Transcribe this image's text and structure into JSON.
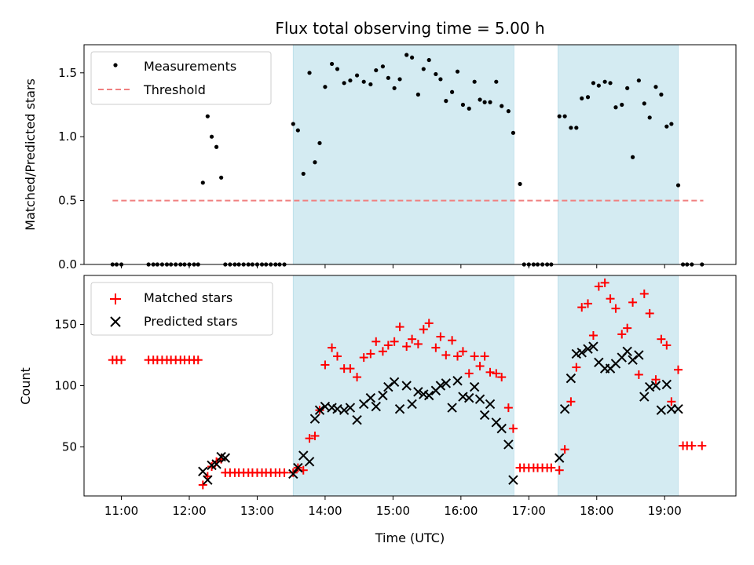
{
  "chart_data": {
    "type": "scatter",
    "title": "Flux total observing time = 5.00 h",
    "xlabel": "Time (UTC)",
    "x_ticks": [
      "11:00",
      "12:00",
      "13:00",
      "14:00",
      "15:00",
      "16:00",
      "17:00",
      "18:00",
      "19:00"
    ],
    "x_tick_hours": [
      11,
      12,
      13,
      14,
      15,
      16,
      17,
      18,
      19
    ],
    "xlim_hours": [
      10.45,
      20.05
    ],
    "shaded_intervals_hours": [
      [
        13.53,
        16.78
      ],
      [
        17.43,
        19.2
      ]
    ],
    "colors": {
      "shade": "#d4ebf2",
      "matched": "#ff0000",
      "predicted": "#000000",
      "threshold": "#f08080",
      "measurement": "#000000"
    },
    "top_panel": {
      "ylabel": "Matched/Predicted stars",
      "ylim": [
        0,
        1.72
      ],
      "y_ticks": [
        0.0,
        0.5,
        1.0,
        1.5
      ],
      "y_tick_labels": [
        "0.0",
        "0.5",
        "1.0",
        "1.5"
      ],
      "legend": {
        "position": "upper-left",
        "entries": [
          "Measurements",
          "Threshold"
        ]
      },
      "threshold": {
        "x_start": 10.87,
        "x_end": 19.57,
        "y": 0.5
      },
      "measurements": {
        "x": [
          10.87,
          10.93,
          11.0,
          11.4,
          11.47,
          11.53,
          11.6,
          11.67,
          11.73,
          11.8,
          11.87,
          11.93,
          12.0,
          12.07,
          12.13,
          12.2,
          12.27,
          12.33,
          12.4,
          12.47,
          12.53,
          12.6,
          12.67,
          12.73,
          12.8,
          12.87,
          12.93,
          13.0,
          13.07,
          13.13,
          13.2,
          13.27,
          13.33,
          13.4,
          13.53,
          13.6,
          13.68,
          13.77,
          13.85,
          13.92,
          14.0,
          14.1,
          14.18,
          14.28,
          14.37,
          14.47,
          14.57,
          14.67,
          14.75,
          14.85,
          14.93,
          15.02,
          15.1,
          15.2,
          15.28,
          15.37,
          15.45,
          15.53,
          15.63,
          15.7,
          15.78,
          15.87,
          15.95,
          16.03,
          16.12,
          16.2,
          16.28,
          16.35,
          16.43,
          16.52,
          16.6,
          16.7,
          16.77,
          16.87,
          16.93,
          17.0,
          17.07,
          17.13,
          17.2,
          17.27,
          17.33,
          17.45,
          17.53,
          17.62,
          17.7,
          17.78,
          17.87,
          17.95,
          18.03,
          18.12,
          18.2,
          18.28,
          18.37,
          18.45,
          18.53,
          18.62,
          18.7,
          18.78,
          18.87,
          18.95,
          19.03,
          19.1,
          19.2,
          19.27,
          19.33,
          19.4,
          19.55
        ],
        "y": [
          0,
          0,
          0,
          0,
          0,
          0,
          0,
          0,
          0,
          0,
          0,
          0,
          0,
          0,
          0,
          0.64,
          1.16,
          1.0,
          0.92,
          0.68,
          0,
          0,
          0,
          0,
          0,
          0,
          0,
          0,
          0,
          0,
          0,
          0,
          0,
          0,
          1.1,
          1.05,
          0.71,
          1.5,
          0.8,
          0.95,
          1.39,
          1.57,
          1.53,
          1.42,
          1.44,
          1.48,
          1.43,
          1.41,
          1.52,
          1.55,
          1.46,
          1.38,
          1.45,
          1.64,
          1.62,
          1.33,
          1.53,
          1.6,
          1.49,
          1.45,
          1.28,
          1.35,
          1.51,
          1.25,
          1.22,
          1.43,
          1.29,
          1.27,
          1.27,
          1.43,
          1.24,
          1.2,
          1.03,
          0.63,
          0,
          0,
          0,
          0,
          0,
          0,
          0,
          1.16,
          1.16,
          1.07,
          1.07,
          1.3,
          1.31,
          1.42,
          1.4,
          1.43,
          1.42,
          1.23,
          1.25,
          1.38,
          0.84,
          1.44,
          1.26,
          1.15,
          1.39,
          1.33,
          1.08,
          1.1,
          0.62,
          0,
          0,
          0,
          0
        ]
      }
    },
    "bottom_panel": {
      "ylabel": "Count",
      "ylim": [
        10,
        190
      ],
      "y_ticks": [
        50,
        100,
        150
      ],
      "y_tick_labels": [
        "50",
        "100",
        "150"
      ],
      "legend": {
        "position": "upper-left",
        "entries": [
          "Matched stars",
          "Predicted stars"
        ]
      },
      "matched": {
        "x": [
          10.87,
          10.93,
          11.0,
          11.4,
          11.47,
          11.53,
          11.6,
          11.67,
          11.73,
          11.8,
          11.87,
          11.93,
          12.0,
          12.07,
          12.13,
          12.2,
          12.27,
          12.33,
          12.4,
          12.47,
          12.53,
          12.6,
          12.67,
          12.73,
          12.8,
          12.87,
          12.93,
          13.0,
          13.07,
          13.13,
          13.2,
          13.27,
          13.33,
          13.4,
          13.53,
          13.6,
          13.68,
          13.77,
          13.85,
          13.92,
          14.0,
          14.1,
          14.18,
          14.28,
          14.37,
          14.47,
          14.57,
          14.67,
          14.75,
          14.85,
          14.93,
          15.02,
          15.1,
          15.2,
          15.28,
          15.37,
          15.45,
          15.53,
          15.63,
          15.7,
          15.78,
          15.87,
          15.95,
          16.03,
          16.12,
          16.2,
          16.28,
          16.35,
          16.43,
          16.52,
          16.6,
          16.7,
          16.77,
          16.87,
          16.93,
          17.0,
          17.07,
          17.13,
          17.2,
          17.27,
          17.33,
          17.45,
          17.53,
          17.62,
          17.7,
          17.78,
          17.87,
          17.95,
          18.03,
          18.12,
          18.2,
          18.28,
          18.37,
          18.45,
          18.53,
          18.62,
          18.7,
          18.78,
          18.87,
          18.95,
          19.03,
          19.1,
          19.2,
          19.27,
          19.33,
          19.4,
          19.55
        ],
        "y": [
          121,
          121,
          121,
          121,
          121,
          121,
          121,
          121,
          121,
          121,
          121,
          121,
          121,
          121,
          121,
          19,
          26,
          34,
          38,
          40,
          29,
          29,
          29,
          29,
          29,
          29,
          29,
          29,
          29,
          29,
          29,
          29,
          29,
          29,
          29,
          33,
          31,
          57,
          59,
          80,
          117,
          131,
          124,
          114,
          114,
          107,
          123,
          126,
          136,
          128,
          133,
          136,
          148,
          132,
          138,
          134,
          146,
          151,
          131,
          140,
          125,
          137,
          124,
          128,
          110,
          124,
          116,
          124,
          111,
          110,
          107,
          82,
          65,
          33,
          33,
          33,
          33,
          33,
          33,
          33,
          33,
          31,
          48,
          87,
          115,
          164,
          167,
          141,
          181,
          184,
          171,
          163,
          142,
          147,
          168,
          109,
          175,
          159,
          105,
          138,
          133,
          87,
          113,
          51,
          51,
          51,
          51
        ]
      },
      "predicted": {
        "x": [
          12.2,
          12.27,
          12.33,
          12.4,
          12.47,
          12.53,
          13.53,
          13.6,
          13.68,
          13.77,
          13.85,
          13.92,
          14.0,
          14.1,
          14.18,
          14.28,
          14.37,
          14.47,
          14.57,
          14.67,
          14.75,
          14.85,
          14.93,
          15.02,
          15.1,
          15.2,
          15.28,
          15.37,
          15.45,
          15.53,
          15.63,
          15.7,
          15.78,
          15.87,
          15.95,
          16.03,
          16.12,
          16.2,
          16.28,
          16.35,
          16.43,
          16.52,
          16.6,
          16.7,
          16.77,
          17.45,
          17.53,
          17.62,
          17.7,
          17.78,
          17.87,
          17.95,
          18.03,
          18.12,
          18.2,
          18.28,
          18.37,
          18.45,
          18.53,
          18.62,
          18.7,
          18.78,
          18.87,
          18.95,
          19.03,
          19.1,
          19.2
        ],
        "y": [
          30,
          23,
          35,
          36,
          42,
          41,
          28,
          33,
          43,
          38,
          73,
          80,
          83,
          82,
          81,
          80,
          82,
          72,
          85,
          90,
          83,
          92,
          99,
          103,
          81,
          100,
          85,
          95,
          93,
          92,
          96,
          100,
          102,
          82,
          104,
          91,
          90,
          99,
          89,
          76,
          85,
          70,
          65,
          52,
          23,
          41,
          81,
          106,
          126,
          127,
          130,
          132,
          119,
          114,
          114,
          118,
          123,
          128,
          121,
          125,
          91,
          99,
          100,
          80,
          101,
          81,
          81
        ]
      }
    }
  }
}
